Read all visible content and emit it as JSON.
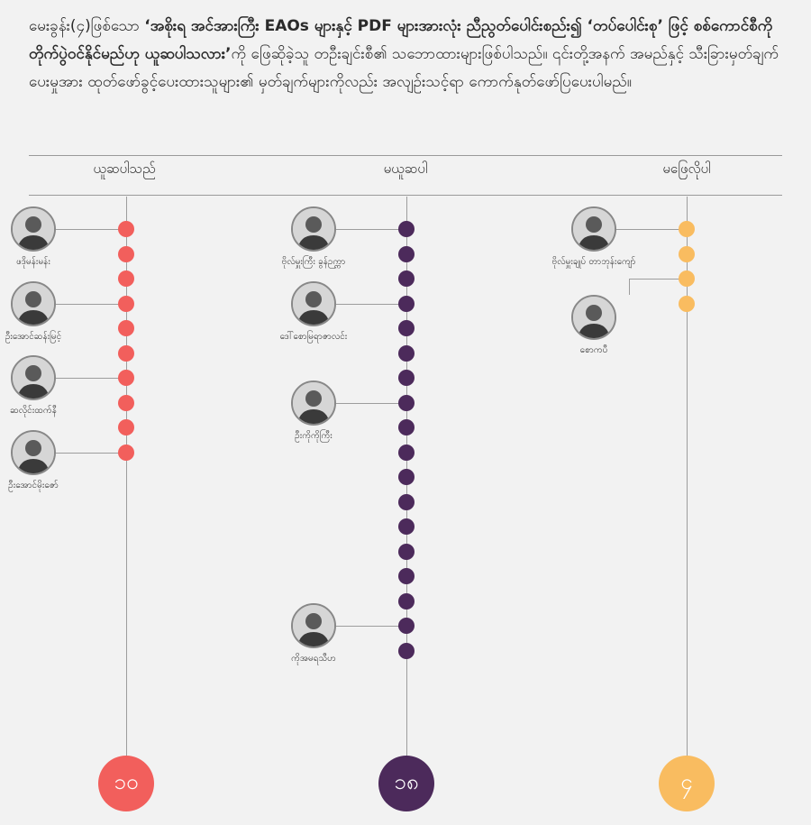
{
  "intro": {
    "part1": "မေးခွန်း(၄)ဖြစ်သော ",
    "quote_bold": "‘အစိုးရ အင်အားကြီး EAOs များနှင့် PDF များအားလုံး ညီညွတ်ပေါင်းစည်း၍ ‘တပ်ပေါင်းစု’ ဖြင့် စစ်ကောင်စီကို တိုက်ပွဲဝင်နိုင်မည်ဟု ယူဆပါသလား’",
    "part2": "ကို ဖြေဆိုခဲ့သူ တဦးချင်းစီ၏ သဘောထားများဖြစ်ပါသည်။ ၎င်းတို့အနက် အမည်နှင့် သီးခြားမှတ်ချက်ပေးမှုအား ထုတ်ဖော်ခွင့်ပေးထားသူများ၏ မှတ်ချက်များကိုလည်း အလျဉ်းသင့်ရာ ကောက်နုတ်ဖော်ပြပေးပါမည်။"
  },
  "columns": [
    {
      "header": "ယူဆပါသည်",
      "color": "#f25f5c",
      "count": 10,
      "total_label": "၁၀",
      "people": [
        {
          "name": "ဖဒိုမန်းမန်း",
          "dot": 0
        },
        {
          "name": "ဦးအောင်ဆန်းမြင့်",
          "dot": 3
        },
        {
          "name": "ဆလိုင်းထက်နီ",
          "dot": 6
        },
        {
          "name": "ဦးအောင်မိုးဇော်",
          "dot": 9
        }
      ]
    },
    {
      "header": "မယူဆပါ",
      "color": "#4c2a5b",
      "count": 18,
      "total_label": "၁၈",
      "people": [
        {
          "name": "ဗိုလ်မှူးကြီး ခွန်ဉက္ကာ",
          "dot": 0
        },
        {
          "name": "ဒေါ်စောမြရာဇာလင်း",
          "dot": 3
        },
        {
          "name": "ဦးကိုကိုကြီး",
          "dot": 7
        },
        {
          "name": "ကိုအမရသီဟ",
          "dot": 16
        }
      ]
    },
    {
      "header": "မဖြေလိုပါ",
      "color": "#f9bc60",
      "count": 4,
      "total_label": "၄",
      "people": [
        {
          "name": "ဗိုလ်မှူးချုပ် တာဘုန်းကျော်",
          "dot": 0
        },
        {
          "name": "စောကပီ",
          "dot": 2
        }
      ]
    }
  ]
}
